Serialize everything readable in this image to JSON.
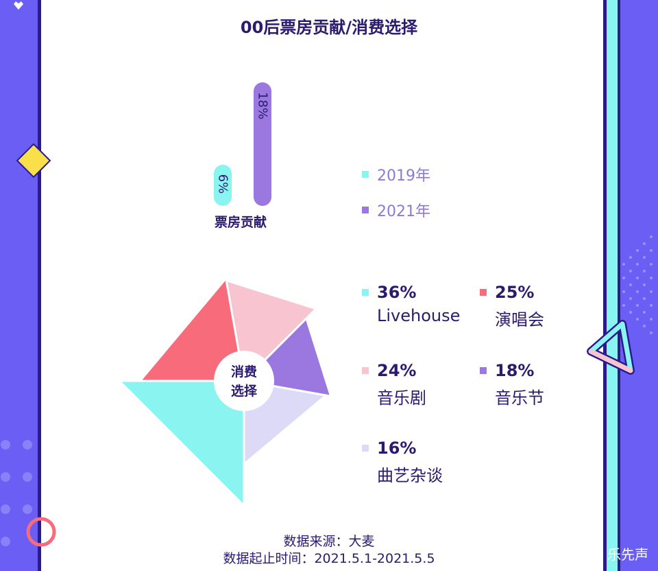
{
  "title": "00后票房贡献/消费选择",
  "colors": {
    "y2019": "#8af5f0",
    "y2021": "#9a78e0",
    "livehouse": "#8af5f0",
    "concert": "#f76b7a",
    "music_drama": "#f7c4d0",
    "music_festival": "#9a78e0",
    "quyi": "#dcdaf6",
    "frame": "#6a5ef5",
    "text": "#2b1a6e"
  },
  "chart_data": [
    {
      "type": "bar",
      "categories": [
        "票房贡献"
      ],
      "series": [
        {
          "name": "2019年",
          "values": [
            6
          ],
          "label": "6%"
        },
        {
          "name": "2021年",
          "values": [
            18
          ],
          "label": "18%"
        }
      ],
      "legend": [
        "2019年",
        "2021年"
      ],
      "legend_position": "right"
    },
    {
      "type": "pie",
      "center_label": "消费选择",
      "center_label_lines": [
        "消费",
        "选择"
      ],
      "slices": [
        {
          "label": "Livehouse",
          "value": 36,
          "pct": "36%"
        },
        {
          "label": "演唱会",
          "value": 25,
          "pct": "25%"
        },
        {
          "label": "音乐剧",
          "value": 24,
          "pct": "24%"
        },
        {
          "label": "音乐节",
          "value": 18,
          "pct": "18%"
        },
        {
          "label": "曲艺杂谈",
          "value": 16,
          "pct": "16%"
        }
      ]
    }
  ],
  "footer": {
    "source": "数据来源：大麦",
    "period": "数据起止时间：2021.5.1-2021.5.5"
  },
  "watermark": "乐先声"
}
